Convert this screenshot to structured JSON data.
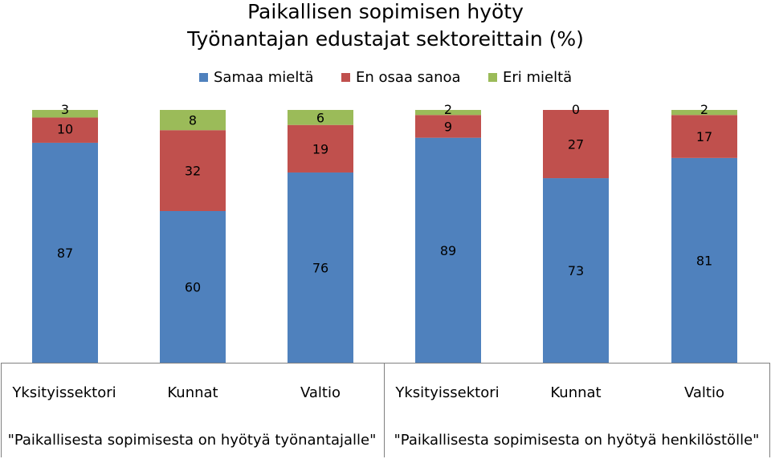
{
  "chart_data": {
    "type": "bar",
    "stacked": true,
    "percent_stacked": true,
    "title": "Paikallisen sopimisen hyöty",
    "subtitle": "Työnantajan edustajat sektoreittain (%)",
    "legend_position": "top",
    "grid": false,
    "ylim": [
      0,
      100
    ],
    "groups": [
      {
        "label": "\"Paikallisesta sopimisesta on hyötyä työnantajalle\"",
        "categories": [
          "Yksityissektori",
          "Kunnat",
          "Valtio"
        ]
      },
      {
        "label": "\"Paikallisesta sopimisesta on hyötyä henkilöstölle\"",
        "categories": [
          "Yksityissektori",
          "Kunnat",
          "Valtio"
        ]
      }
    ],
    "categories": [
      "Yksityissektori",
      "Kunnat",
      "Valtio",
      "Yksityissektori",
      "Kunnat",
      "Valtio"
    ],
    "series": [
      {
        "name": "Samaa mieltä",
        "color": "#4f81bd",
        "values": [
          87,
          60,
          76,
          89,
          73,
          81
        ]
      },
      {
        "name": "En osaa sanoa",
        "color": "#c0504d",
        "values": [
          10,
          32,
          19,
          9,
          27,
          17
        ]
      },
      {
        "name": "Eri mieltä",
        "color": "#9bbb59",
        "values": [
          3,
          8,
          6,
          2,
          0,
          2
        ]
      }
    ]
  }
}
